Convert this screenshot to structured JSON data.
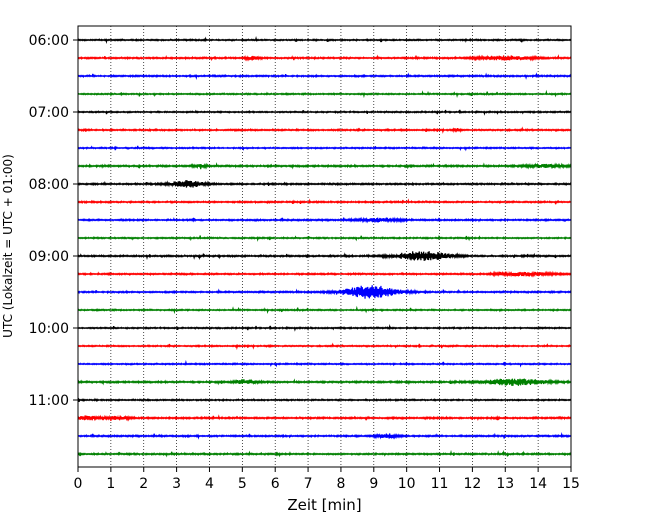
{
  "chart_data": {
    "type": "line",
    "title": "",
    "xlabel": "Zeit  [min]",
    "ylabel": "UTC (Lokalzeit = UTC + 01:00)",
    "xlim": [
      0,
      15
    ],
    "x_ticks": [
      "0",
      "1",
      "2",
      "3",
      "4",
      "5",
      "6",
      "7",
      "8",
      "9",
      "10",
      "11",
      "12",
      "13",
      "14",
      "15"
    ],
    "y_tick_labels": [
      "06:00",
      "07:00",
      "08:00",
      "09:00",
      "10:00",
      "11:00"
    ],
    "grid": "vertical-dotted",
    "colors": [
      "#000000",
      "#ff0000",
      "#0000ff",
      "#008000"
    ],
    "traces": [
      {
        "start": "06:00",
        "color": "#000000",
        "amplitude": 0.35,
        "events": []
      },
      {
        "start": "06:15",
        "color": "#ff0000",
        "amplitude": 0.4,
        "events": [
          {
            "t": 5.3,
            "width": 0.2,
            "amp": 1.1
          },
          {
            "t": 13.0,
            "width": 0.8,
            "amp": 1.3
          }
        ]
      },
      {
        "start": "06:30",
        "color": "#0000ff",
        "amplitude": 0.4,
        "events": []
      },
      {
        "start": "06:45",
        "color": "#008000",
        "amplitude": 0.35,
        "events": []
      },
      {
        "start": "07:00",
        "color": "#000000",
        "amplitude": 0.35,
        "events": []
      },
      {
        "start": "07:15",
        "color": "#ff0000",
        "amplitude": 0.4,
        "events": [
          {
            "t": 11.5,
            "width": 0.1,
            "amp": 1.0
          }
        ]
      },
      {
        "start": "07:30",
        "color": "#0000ff",
        "amplitude": 0.35,
        "events": []
      },
      {
        "start": "07:45",
        "color": "#008000",
        "amplitude": 0.45,
        "events": [
          {
            "t": 3.7,
            "width": 0.2,
            "amp": 0.9
          },
          {
            "t": 14.2,
            "width": 0.6,
            "amp": 0.9
          }
        ]
      },
      {
        "start": "08:00",
        "color": "#000000",
        "amplitude": 0.4,
        "events": [
          {
            "t": 3.3,
            "width": 0.5,
            "amp": 2.2
          }
        ]
      },
      {
        "start": "08:15",
        "color": "#ff0000",
        "amplitude": 0.4,
        "events": []
      },
      {
        "start": "08:30",
        "color": "#0000ff",
        "amplitude": 0.4,
        "events": [
          {
            "t": 9.2,
            "width": 0.6,
            "amp": 1.2
          }
        ]
      },
      {
        "start": "08:45",
        "color": "#008000",
        "amplitude": 0.35,
        "events": []
      },
      {
        "start": "09:00",
        "color": "#000000",
        "amplitude": 0.4,
        "events": [
          {
            "t": 10.5,
            "width": 0.8,
            "amp": 3.2
          }
        ]
      },
      {
        "start": "09:15",
        "color": "#ff0000",
        "amplitude": 0.4,
        "events": [
          {
            "t": 13.6,
            "width": 0.8,
            "amp": 1.1
          }
        ]
      },
      {
        "start": "09:30",
        "color": "#0000ff",
        "amplitude": 0.4,
        "events": [
          {
            "t": 8.9,
            "width": 0.8,
            "amp": 4.2
          }
        ]
      },
      {
        "start": "09:45",
        "color": "#008000",
        "amplitude": 0.35,
        "events": []
      },
      {
        "start": "10:00",
        "color": "#000000",
        "amplitude": 0.35,
        "events": []
      },
      {
        "start": "10:15",
        "color": "#ff0000",
        "amplitude": 0.35,
        "events": []
      },
      {
        "start": "10:30",
        "color": "#0000ff",
        "amplitude": 0.35,
        "events": []
      },
      {
        "start": "10:45",
        "color": "#008000",
        "amplitude": 0.45,
        "events": [
          {
            "t": 5.1,
            "width": 0.3,
            "amp": 1.5
          },
          {
            "t": 13.3,
            "width": 0.9,
            "amp": 2.2
          }
        ]
      },
      {
        "start": "11:00",
        "color": "#000000",
        "amplitude": 0.35,
        "events": []
      },
      {
        "start": "11:15",
        "color": "#ff0000",
        "amplitude": 0.45,
        "events": [
          {
            "t": 0.3,
            "width": 0.3,
            "amp": 1.4
          },
          {
            "t": 1.2,
            "width": 0.3,
            "amp": 1.2
          }
        ]
      },
      {
        "start": "11:30",
        "color": "#0000ff",
        "amplitude": 0.4,
        "events": [
          {
            "t": 9.4,
            "width": 0.3,
            "amp": 1.4
          }
        ]
      },
      {
        "start": "11:45",
        "color": "#008000",
        "amplitude": 0.4,
        "events": []
      }
    ]
  }
}
